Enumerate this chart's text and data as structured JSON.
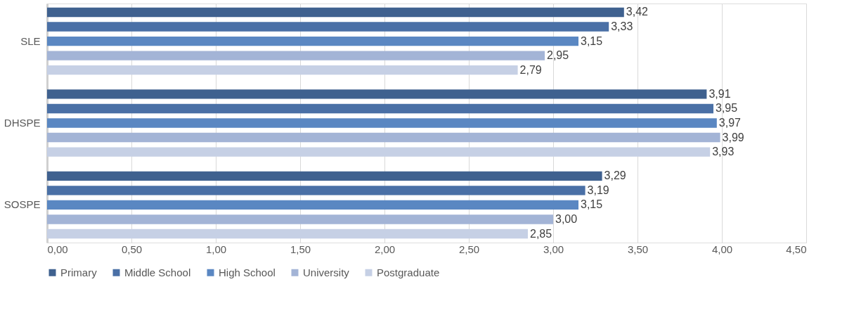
{
  "chart_data": {
    "type": "bar",
    "orientation": "horizontal",
    "categories": [
      "SLE",
      "DHSPE",
      "SOSPE"
    ],
    "series": [
      {
        "name": "Primary",
        "color": "#3f618f",
        "values": [
          3.42,
          3.91,
          3.29
        ],
        "value_labels": [
          "3,42",
          "3,91",
          "3,29"
        ]
      },
      {
        "name": "Middle School",
        "color": "#4a70a6",
        "values": [
          3.33,
          3.95,
          3.19
        ],
        "value_labels": [
          "3,33",
          "3,95",
          "3,19"
        ]
      },
      {
        "name": "High School",
        "color": "#5a87c2",
        "values": [
          3.15,
          3.97,
          3.15
        ],
        "value_labels": [
          "3,15",
          "3,97",
          "3,15"
        ]
      },
      {
        "name": "University",
        "color": "#a3b4d6",
        "values": [
          2.95,
          3.99,
          3.0
        ],
        "value_labels": [
          "2,95",
          "3,99",
          "3,00"
        ]
      },
      {
        "name": "Postgraduate",
        "color": "#c6d0e5",
        "values": [
          2.79,
          3.93,
          2.85
        ],
        "value_labels": [
          "2,79",
          "3,93",
          "2,85"
        ]
      }
    ],
    "xlim": [
      0,
      4.5
    ],
    "xticks": [
      {
        "value": 0,
        "label": "0,00"
      },
      {
        "value": 0.5,
        "label": "0,50"
      },
      {
        "value": 1,
        "label": "1,00"
      },
      {
        "value": 1.5,
        "label": "1,50"
      },
      {
        "value": 2,
        "label": "2,00"
      },
      {
        "value": 2.5,
        "label": "2,50"
      },
      {
        "value": 3,
        "label": "3,00"
      },
      {
        "value": 3.5,
        "label": "3,50"
      },
      {
        "value": 4,
        "label": "4,00"
      },
      {
        "value": 4.5,
        "label": "4,50"
      }
    ],
    "grid": "x",
    "legend": "bottom"
  }
}
